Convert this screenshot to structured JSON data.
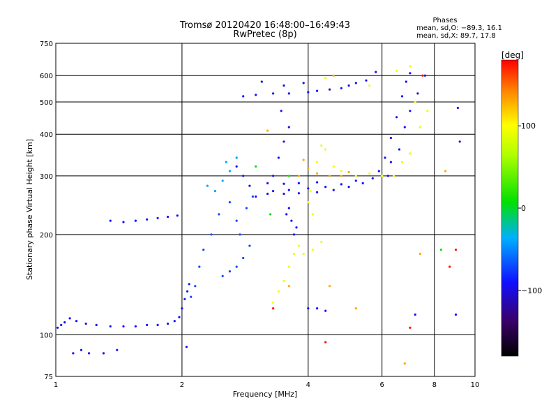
{
  "chart_data": {
    "type": "scatter",
    "title": "Tromsø 20120420 16:48:00–16:49:43",
    "subtitle": "RwPretec (8p)",
    "xlabel": "Frequency [MHz]",
    "ylabel": "Stationary phase Virtual Height [km]",
    "xscale": "log",
    "yscale": "log",
    "xlim": [
      1,
      10
    ],
    "ylim": [
      75,
      750
    ],
    "grid": true,
    "x_ticks": [
      {
        "value": 1,
        "label": "1"
      },
      {
        "value": 2,
        "label": "2"
      },
      {
        "value": 4,
        "label": "4"
      },
      {
        "value": 6,
        "label": "6"
      },
      {
        "value": 8,
        "label": "8"
      },
      {
        "value": 10,
        "label": "10"
      }
    ],
    "y_ticks": [
      {
        "value": 75,
        "label": "75"
      },
      {
        "value": 100,
        "label": "100"
      },
      {
        "value": 200,
        "label": "200"
      },
      {
        "value": 300,
        "label": "300"
      },
      {
        "value": 400,
        "label": "400"
      },
      {
        "value": 500,
        "label": "500"
      },
      {
        "value": 600,
        "label": "600"
      },
      {
        "value": 750,
        "label": "750"
      }
    ],
    "stats": {
      "heading": "Phases",
      "line_o": "mean, sd,O: −89.3, 16.1",
      "line_x": "mean, sd,X: 89.7, 17.8"
    },
    "colorbar": {
      "label": "[deg]",
      "range": [
        -180,
        180
      ],
      "ticks": [
        {
          "value": 100,
          "label": "100"
        },
        {
          "value": 0,
          "label": "0"
        },
        {
          "value": -100,
          "label": "−100"
        }
      ]
    },
    "series": [
      {
        "phase": -90,
        "points": [
          [
            1.01,
            105
          ],
          [
            1.03,
            107
          ],
          [
            1.05,
            109
          ],
          [
            1.08,
            112
          ],
          [
            1.12,
            110
          ],
          [
            1.18,
            108
          ],
          [
            1.25,
            107
          ],
          [
            1.35,
            106
          ],
          [
            1.45,
            106
          ],
          [
            1.55,
            106
          ],
          [
            1.65,
            107
          ],
          [
            1.75,
            107
          ],
          [
            1.85,
            108
          ],
          [
            1.92,
            110
          ],
          [
            1.97,
            113
          ],
          [
            2.0,
            120
          ],
          [
            2.03,
            128
          ],
          [
            2.06,
            135
          ],
          [
            2.08,
            142
          ],
          [
            1.35,
            220
          ],
          [
            1.45,
            218
          ],
          [
            1.55,
            220
          ],
          [
            1.65,
            222
          ],
          [
            1.75,
            224
          ],
          [
            1.85,
            226
          ],
          [
            1.95,
            228
          ],
          [
            3.2,
            265
          ],
          [
            3.5,
            265
          ],
          [
            3.8,
            266
          ],
          [
            4.2,
            268
          ],
          [
            4.6,
            272
          ],
          [
            5.0,
            278
          ],
          [
            5.4,
            285
          ],
          [
            5.7,
            295
          ],
          [
            5.9,
            310
          ],
          [
            6.1,
            340
          ],
          [
            6.3,
            390
          ],
          [
            6.5,
            450
          ],
          [
            6.7,
            520
          ],
          [
            6.85,
            575
          ],
          [
            7.0,
            610
          ],
          [
            3.3,
            270
          ],
          [
            3.6,
            272
          ],
          [
            4.0,
            275
          ],
          [
            4.4,
            278
          ],
          [
            4.8,
            283
          ],
          [
            5.2,
            290
          ],
          [
            3.2,
            285
          ],
          [
            3.5,
            284
          ],
          [
            3.8,
            285
          ],
          [
            4.2,
            287
          ],
          [
            3.3,
            300
          ],
          [
            3.4,
            340
          ],
          [
            3.5,
            380
          ],
          [
            3.6,
            420
          ],
          [
            3.45,
            470
          ],
          [
            3.6,
            240
          ],
          [
            3.65,
            220
          ],
          [
            3.7,
            200
          ],
          [
            3.55,
            230
          ],
          [
            3.75,
            210
          ],
          [
            2.8,
            520
          ],
          [
            3.0,
            525
          ],
          [
            3.3,
            530
          ],
          [
            3.6,
            530
          ],
          [
            4.0,
            535
          ],
          [
            4.5,
            545
          ],
          [
            5.0,
            560
          ],
          [
            5.5,
            580
          ],
          [
            5.8,
            615
          ],
          [
            5.2,
            570
          ],
          [
            4.8,
            550
          ],
          [
            4.2,
            540
          ],
          [
            3.1,
            575
          ],
          [
            3.5,
            560
          ],
          [
            3.9,
            570
          ],
          [
            6.2,
            300
          ],
          [
            6.3,
            330
          ],
          [
            6.6,
            360
          ],
          [
            6.8,
            420
          ],
          [
            7.0,
            470
          ],
          [
            7.3,
            530
          ],
          [
            7.6,
            600
          ],
          [
            2.8,
            300
          ],
          [
            2.9,
            280
          ],
          [
            3.0,
            260
          ],
          [
            2.7,
            320
          ],
          [
            1.15,
            90
          ],
          [
            1.2,
            88
          ],
          [
            1.3,
            88
          ],
          [
            1.4,
            90
          ],
          [
            1.1,
            88
          ],
          [
            2.05,
            92
          ],
          [
            4.0,
            120
          ],
          [
            4.2,
            120
          ],
          [
            4.4,
            118
          ],
          [
            7.2,
            115
          ],
          [
            9.0,
            115
          ],
          [
            9.1,
            480
          ],
          [
            9.2,
            380
          ]
        ]
      },
      {
        "phase": -70,
        "points": [
          [
            2.5,
            150
          ],
          [
            2.6,
            155
          ],
          [
            2.7,
            160
          ],
          [
            2.8,
            170
          ],
          [
            2.9,
            185
          ],
          [
            2.75,
            200
          ],
          [
            2.7,
            220
          ],
          [
            2.85,
            240
          ],
          [
            2.95,
            260
          ],
          [
            2.6,
            250
          ],
          [
            2.45,
            230
          ],
          [
            2.35,
            200
          ],
          [
            2.25,
            180
          ],
          [
            2.2,
            160
          ],
          [
            2.15,
            140
          ],
          [
            2.1,
            130
          ]
        ]
      },
      {
        "phase": -40,
        "points": [
          [
            2.3,
            280
          ],
          [
            2.5,
            290
          ],
          [
            2.6,
            310
          ],
          [
            2.55,
            330
          ],
          [
            2.7,
            340
          ],
          [
            2.4,
            270
          ]
        ]
      },
      {
        "phase": 95,
        "points": [
          [
            3.3,
            125
          ],
          [
            3.4,
            135
          ],
          [
            3.5,
            145
          ],
          [
            3.6,
            160
          ],
          [
            3.7,
            175
          ],
          [
            3.8,
            185
          ],
          [
            3.9,
            175
          ],
          [
            4.1,
            180
          ],
          [
            4.3,
            190
          ],
          [
            4.1,
            230
          ],
          [
            4.0,
            250
          ],
          [
            4.05,
            270
          ],
          [
            4.2,
            330
          ],
          [
            4.3,
            370
          ],
          [
            4.4,
            360
          ],
          [
            4.6,
            320
          ],
          [
            4.8,
            310
          ],
          [
            5.2,
            300
          ],
          [
            5.6,
            305
          ],
          [
            6.0,
            300
          ],
          [
            6.4,
            300
          ],
          [
            6.7,
            330
          ],
          [
            7.0,
            350
          ],
          [
            7.4,
            420
          ],
          [
            7.7,
            470
          ],
          [
            7.2,
            500
          ],
          [
            6.5,
            620
          ],
          [
            7.0,
            640
          ],
          [
            5.6,
            560
          ],
          [
            4.4,
            590
          ]
        ]
      },
      {
        "phase": 130,
        "points": [
          [
            3.8,
            300
          ],
          [
            4.0,
            315
          ],
          [
            4.2,
            305
          ],
          [
            4.5,
            300
          ],
          [
            4.8,
            300
          ],
          [
            5.0,
            308
          ],
          [
            3.9,
            335
          ],
          [
            3.2,
            410
          ],
          [
            3.6,
            140
          ],
          [
            4.5,
            140
          ],
          [
            5.2,
            120
          ],
          [
            7.4,
            175
          ],
          [
            7.0,
            105
          ],
          [
            8.5,
            310
          ],
          [
            4.6,
            600
          ],
          [
            6.8,
            82
          ]
        ]
      },
      {
        "phase": 175,
        "points": [
          [
            3.3,
            120
          ],
          [
            4.4,
            95
          ],
          [
            7.0,
            105
          ],
          [
            8.7,
            160
          ],
          [
            9.0,
            180
          ],
          [
            7.5,
            600
          ]
        ]
      },
      {
        "phase": 10,
        "points": [
          [
            3.6,
            300
          ],
          [
            3.0,
            320
          ],
          [
            3.25,
            230
          ],
          [
            8.3,
            180
          ]
        ]
      }
    ]
  }
}
